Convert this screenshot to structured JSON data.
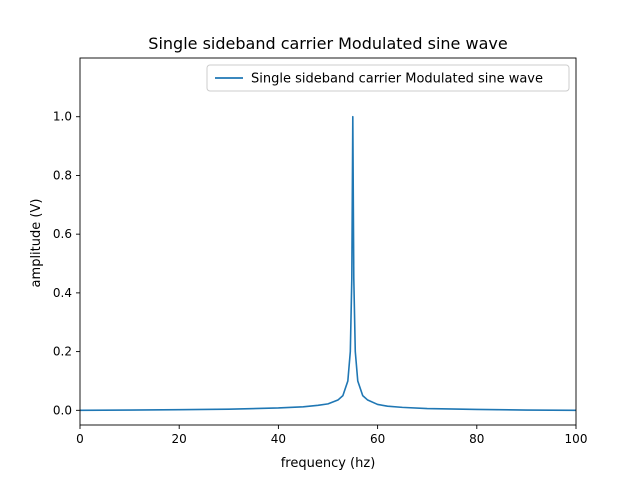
{
  "chart_data": {
    "type": "line",
    "title": "Single sideband carrier Modulated sine wave",
    "xlabel": "frequency (hz)",
    "ylabel": "amplitude (V)",
    "xlim": [
      0,
      100
    ],
    "ylim": [
      -0.05,
      1.2
    ],
    "x_ticks": [
      0,
      20,
      40,
      60,
      80,
      100
    ],
    "y_ticks": [
      0.0,
      0.2,
      0.4,
      0.6,
      0.8,
      1.0
    ],
    "x_tick_labels": [
      "0",
      "20",
      "40",
      "60",
      "80",
      "100"
    ],
    "y_tick_labels": [
      "0.0",
      "0.2",
      "0.4",
      "0.6",
      "0.8",
      "1.0"
    ],
    "grid": false,
    "legend_position": "top-right",
    "series": [
      {
        "name": "Single sideband carrier Modulated sine wave",
        "color": "#1f77b4",
        "x": [
          0,
          10,
          20,
          30,
          40,
          45,
          48,
          50,
          52,
          53,
          54,
          54.5,
          54.8,
          55,
          55.2,
          55.5,
          56,
          57,
          58,
          60,
          62,
          65,
          70,
          80,
          90,
          100
        ],
        "y": [
          0.0,
          0.001,
          0.002,
          0.004,
          0.008,
          0.012,
          0.017,
          0.022,
          0.035,
          0.05,
          0.1,
          0.2,
          0.45,
          1.0,
          0.45,
          0.2,
          0.1,
          0.05,
          0.035,
          0.02,
          0.014,
          0.01,
          0.006,
          0.003,
          0.001,
          0.0
        ]
      }
    ]
  }
}
